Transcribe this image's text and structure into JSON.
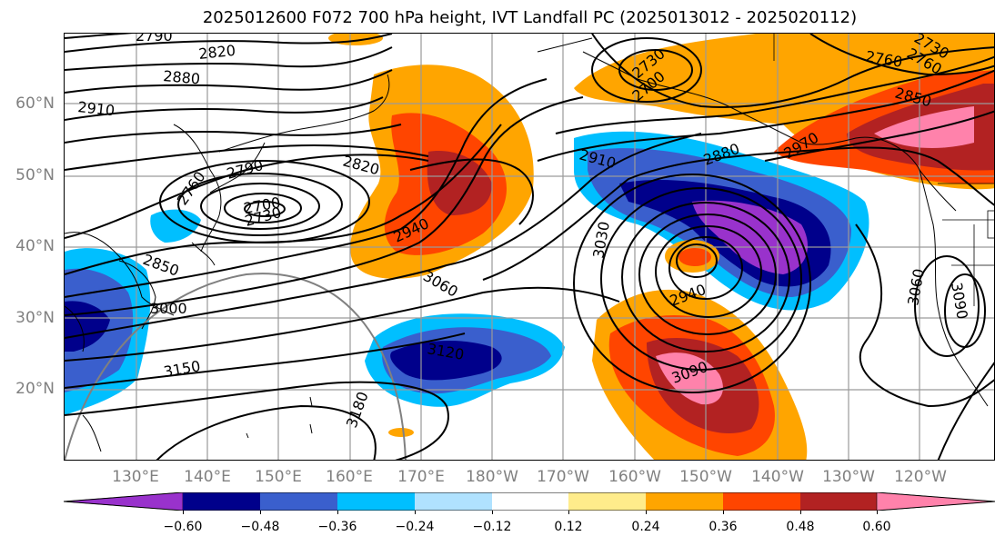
{
  "title": "2025012600 F072 700 hPa height, IVT Landfall PC (2025013012 - 2025020112)",
  "latitude_labels": [
    "60°N",
    "50°N",
    "40°N",
    "30°N",
    "20°N"
  ],
  "longitude_labels": [
    "130°E",
    "140°E",
    "150°E",
    "160°E",
    "170°E",
    "180°W",
    "170°W",
    "160°W",
    "150°W",
    "140°W",
    "130°W",
    "120°W"
  ],
  "contour_labels": [
    "2790",
    "2820",
    "2880",
    "2910",
    "2760",
    "2790",
    "2700",
    "2730",
    "2820",
    "2940",
    "2850",
    "3000",
    "3150",
    "3180",
    "3060",
    "3120",
    "3030",
    "2910",
    "2880",
    "2940",
    "3090",
    "2700",
    "2730",
    "2760",
    "2850",
    "2970",
    "2760",
    "2730",
    "3060",
    "3090"
  ],
  "colorbar": {
    "ticks": [
      "−0.60",
      "−0.48",
      "−0.36",
      "−0.24",
      "−0.12",
      "0.12",
      "0.24",
      "0.36",
      "0.48",
      "0.60"
    ],
    "colors": [
      "#9932cc",
      "#00008b",
      "#3a5fcd",
      "#00bfff",
      "#b0e2ff",
      "#ffffff",
      "#ffec8b",
      "#ffa500",
      "#ff4500",
      "#b22222",
      "#ff82ab"
    ]
  }
}
